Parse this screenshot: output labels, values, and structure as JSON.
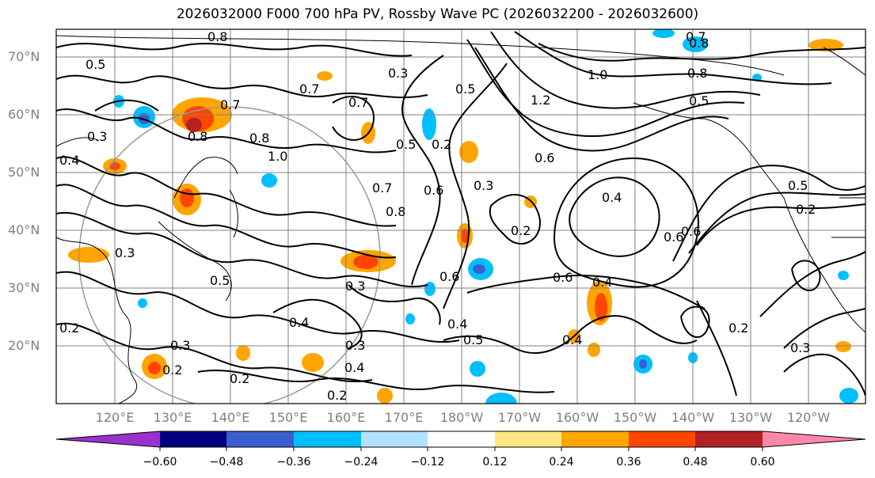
{
  "title": "2026032000 F000 700 hPa PV, Rossby Wave PC (2026032200 - 2026032600)",
  "map": {
    "lat_labels": [
      "70°N",
      "60°N",
      "50°N",
      "40°N",
      "30°N",
      "20°N"
    ],
    "lon_labels": [
      "120°E",
      "130°E",
      "140°E",
      "150°E",
      "160°E",
      "170°E",
      "180°W",
      "170°W",
      "160°W",
      "150°W",
      "140°W",
      "130°W",
      "120°W"
    ],
    "contour_labels": [
      "0.8",
      "0.5",
      "0.7",
      "0.8",
      "0.3",
      "0.7",
      "0.8",
      "0.7",
      "0.2",
      "0.6",
      "0.4",
      "0.3",
      "0.5",
      "0.3",
      "0.4",
      "0.2",
      "0.5",
      "0.6",
      "1.0",
      "1.2",
      "0.5",
      "0.8",
      "1.0",
      "0.7",
      "0.6",
      "0.8",
      "0.4",
      "0.5",
      "0.8",
      "0.2",
      "0.5",
      "0.3",
      "0.7",
      "0.6",
      "0.4",
      "0.2",
      "0.6",
      "0.4",
      "0.2",
      "0.3",
      "0.4",
      "0.3",
      "0.4",
      "0.2",
      "0.2",
      "0.3",
      "0.2",
      "0.5",
      "0.6",
      "0.3"
    ]
  },
  "colorbar": {
    "ticks": [
      "−0.60",
      "−0.48",
      "−0.36",
      "−0.24",
      "−0.12",
      "0.12",
      "0.24",
      "0.36",
      "0.48",
      "0.60"
    ],
    "colors": [
      "#9932cc",
      "#000080",
      "#3a5fcd",
      "#00bfff",
      "#b0e2ff",
      "#ffffff",
      "#ffe680",
      "#ffa500",
      "#ff4500",
      "#b22222",
      "#ff88aa"
    ]
  },
  "colors": {
    "positive_pc": "#ffa500",
    "negative_pc": "#00bfff",
    "grid": "#808080"
  }
}
